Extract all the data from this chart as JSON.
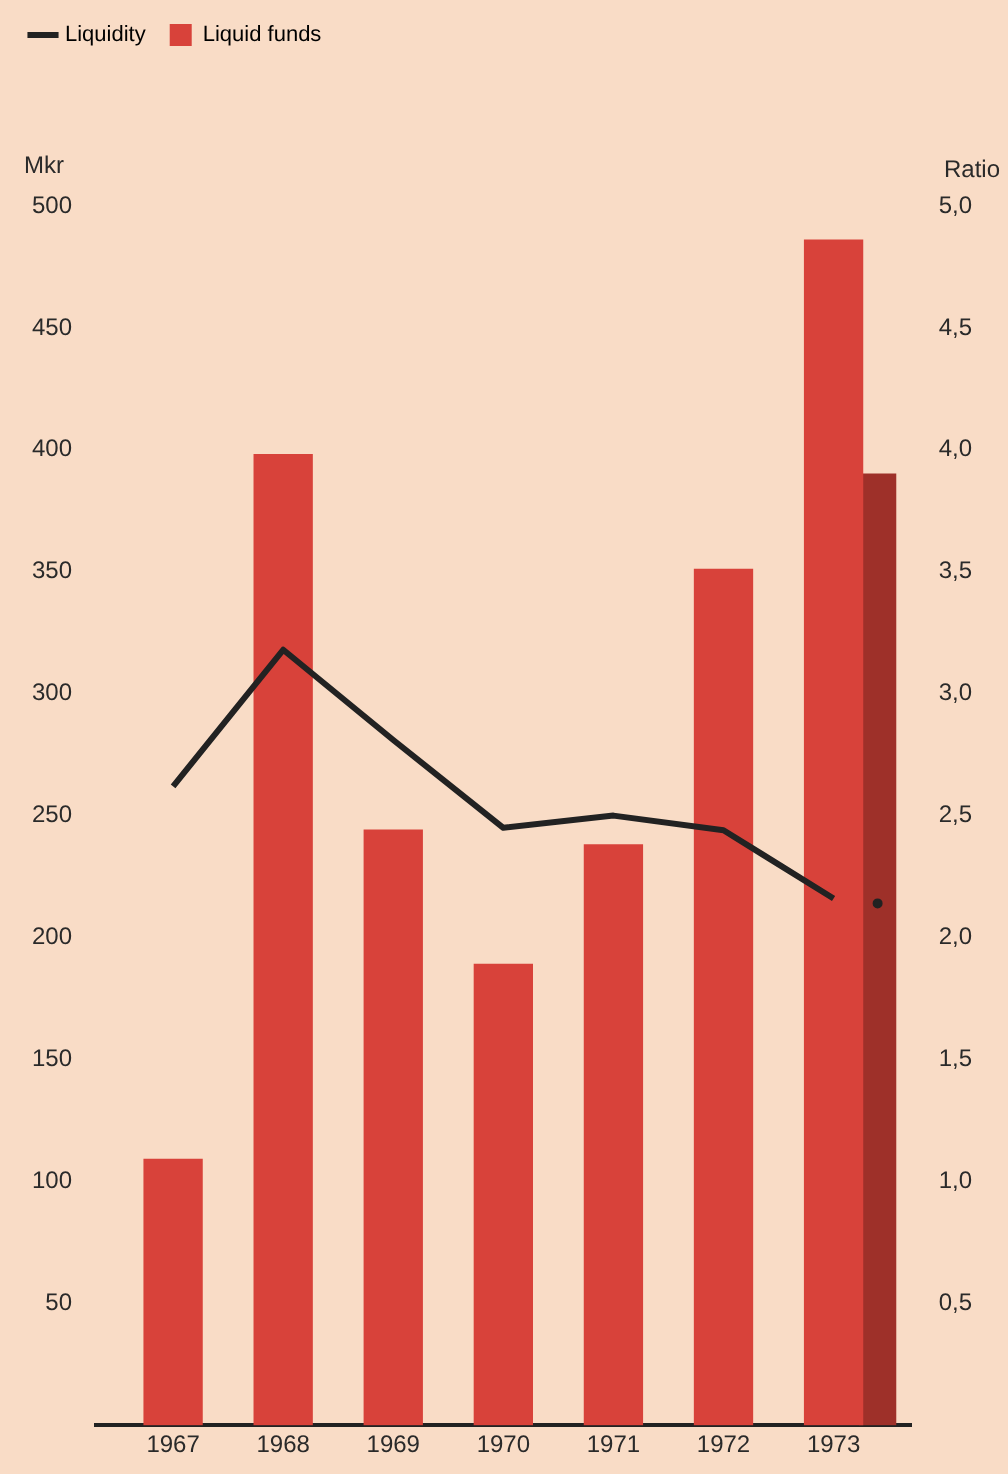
{
  "chart_data": {
    "type": "bar",
    "categories": [
      "1967",
      "1968",
      "1969",
      "1970",
      "1971",
      "1972",
      "1973"
    ],
    "series": [
      {
        "name": "Liquid funds",
        "color": "#d8423a",
        "values": [
          109,
          398,
          244,
          189,
          238,
          351,
          486
        ]
      },
      {
        "color": "#9e3029",
        "values": [
          null,
          null,
          null,
          null,
          null,
          null,
          390
        ]
      },
      {
        "name": "Liquidity",
        "type": "line",
        "axis": "y2",
        "color": "#222222",
        "marker": "none",
        "values": [
          2.62,
          3.18,
          2.81,
          2.45,
          2.5,
          2.44,
          2.16
        ]
      },
      {
        "type": "scatter",
        "axis": "y2",
        "color": "#222222",
        "marker": "circle",
        "values": [
          null,
          null,
          null,
          null,
          null,
          null,
          2.14
        ]
      }
    ],
    "ylabel": "Mkr",
    "y2label": "Ratio",
    "ylim": [
      0,
      500
    ],
    "yticks": [
      50,
      100,
      150,
      200,
      250,
      300,
      350,
      400,
      450,
      500
    ],
    "y2lim": [
      0,
      5
    ],
    "y2ticks": [
      {
        "value": 0.5,
        "label": "0,5"
      },
      {
        "value": 1,
        "label": "1,0"
      },
      {
        "value": 1.5,
        "label": "1,5"
      },
      {
        "value": 2,
        "label": "2,0"
      },
      {
        "value": 2.5,
        "label": "2,5"
      },
      {
        "value": 3,
        "label": "3,0"
      },
      {
        "value": 3.5,
        "label": "3,5"
      },
      {
        "value": 4,
        "label": "4,0"
      },
      {
        "value": 4.5,
        "label": "4,5"
      },
      {
        "value": 5,
        "label": "5,0"
      }
    ],
    "legend": "top left",
    "grid": false
  }
}
